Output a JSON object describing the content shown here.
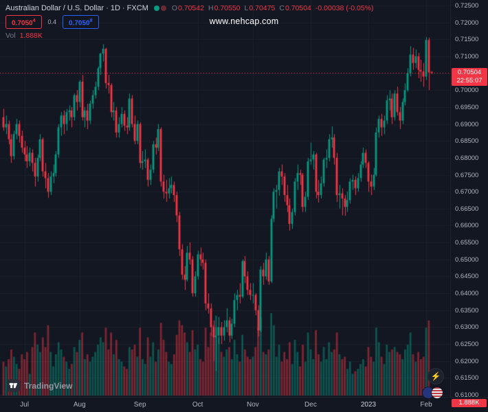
{
  "header": {
    "symbol_title_full": "Australian Dollar / U.S. Dollar · 1D · FXCM",
    "ohlc": {
      "o_label": "O",
      "o": "0.70542",
      "h_label": "H",
      "h": "0.70550",
      "l_label": "L",
      "l": "0.70475",
      "c_label": "C",
      "c": "0.70504",
      "change": "-0.00038 (-0.05%)"
    },
    "sell": {
      "main": "0.7050",
      "sup": "4"
    },
    "spread": "0.4",
    "buy": {
      "main": "0.7050",
      "sup": "8"
    },
    "vol_label": "Vol",
    "vol_value": "1.888K"
  },
  "watermark": "www.nehcap.com",
  "price_axis": {
    "labels": [
      "0.72500",
      "0.72000",
      "0.71500",
      "0.71000",
      "0.70500",
      "0.70000",
      "0.69500",
      "0.69000",
      "0.68500",
      "0.68000",
      "0.67500",
      "0.67000",
      "0.66500",
      "0.66000",
      "0.65500",
      "0.65000",
      "0.64500",
      "0.64000",
      "0.63500",
      "0.63000",
      "0.62500",
      "0.62000",
      "0.61500",
      "0.61000"
    ],
    "last_price_label": "0.70504",
    "countdown": "22:55:07",
    "volume_label": "1.888K"
  },
  "time_axis": {
    "ticks": [
      {
        "label": "Jul",
        "index": 8
      },
      {
        "label": "Aug",
        "index": 29
      },
      {
        "label": "Sep",
        "index": 52
      },
      {
        "label": "Oct",
        "index": 74
      },
      {
        "label": "Nov",
        "index": 95
      },
      {
        "label": "Dec",
        "index": 117
      },
      {
        "label": "2023",
        "index": 139
      },
      {
        "label": "Feb",
        "index": 161
      }
    ]
  },
  "logo": {
    "text": "TradingView"
  },
  "colors": {
    "up": "#089981",
    "down": "#f23645",
    "buy": "#2962ff",
    "axis_text": "#b2b5be",
    "bg": "#131722"
  },
  "chart_data": {
    "type": "candlestick",
    "pair_title": "Australian Dollar / U.S. Dollar",
    "interval": "1D",
    "exchange": "FXCM",
    "last_price": 0.70504,
    "price_range": [
      0.61,
      0.725
    ],
    "price_step": 0.005,
    "volume_units": "thousands",
    "candle_fields": [
      "open",
      "high",
      "low",
      "close",
      "volume_k"
    ],
    "candles": [
      [
        0.692,
        0.6945,
        0.688,
        0.689,
        140
      ],
      [
        0.689,
        0.6925,
        0.687,
        0.69,
        120
      ],
      [
        0.69,
        0.691,
        0.684,
        0.6855,
        150
      ],
      [
        0.6855,
        0.687,
        0.6785,
        0.6805,
        190
      ],
      [
        0.6805,
        0.688,
        0.6795,
        0.687,
        160
      ],
      [
        0.687,
        0.6915,
        0.6855,
        0.69,
        130
      ],
      [
        0.69,
        0.691,
        0.6845,
        0.6865,
        110
      ],
      [
        0.6865,
        0.688,
        0.6815,
        0.683,
        170
      ],
      [
        0.683,
        0.685,
        0.679,
        0.681,
        150
      ],
      [
        0.681,
        0.6835,
        0.677,
        0.679,
        180
      ],
      [
        0.679,
        0.683,
        0.6775,
        0.6815,
        90
      ],
      [
        0.6815,
        0.6825,
        0.676,
        0.6785,
        200
      ],
      [
        0.6785,
        0.68,
        0.6715,
        0.6745,
        260
      ],
      [
        0.6745,
        0.681,
        0.673,
        0.68,
        210
      ],
      [
        0.68,
        0.687,
        0.679,
        0.6855,
        180
      ],
      [
        0.6855,
        0.686,
        0.6745,
        0.676,
        240
      ],
      [
        0.676,
        0.6785,
        0.671,
        0.674,
        200
      ],
      [
        0.674,
        0.6755,
        0.6682,
        0.67,
        290
      ],
      [
        0.67,
        0.676,
        0.669,
        0.6745,
        180
      ],
      [
        0.6745,
        0.678,
        0.6725,
        0.6755,
        120
      ],
      [
        0.6755,
        0.682,
        0.6745,
        0.681,
        170
      ],
      [
        0.681,
        0.69,
        0.68,
        0.689,
        220
      ],
      [
        0.689,
        0.6935,
        0.6865,
        0.6925,
        190
      ],
      [
        0.6925,
        0.694,
        0.687,
        0.69,
        160
      ],
      [
        0.69,
        0.6945,
        0.688,
        0.6935,
        140
      ],
      [
        0.6935,
        0.6955,
        0.691,
        0.694,
        110
      ],
      [
        0.694,
        0.695,
        0.689,
        0.692,
        130
      ],
      [
        0.692,
        0.699,
        0.691,
        0.6985,
        200
      ],
      [
        0.6985,
        0.7,
        0.694,
        0.6965,
        180
      ],
      [
        0.6965,
        0.703,
        0.695,
        0.7025,
        230
      ],
      [
        0.7025,
        0.7045,
        0.691,
        0.692,
        260
      ],
      [
        0.692,
        0.695,
        0.689,
        0.694,
        150
      ],
      [
        0.694,
        0.696,
        0.6885,
        0.691,
        170
      ],
      [
        0.691,
        0.697,
        0.69,
        0.696,
        140
      ],
      [
        0.696,
        0.7,
        0.6945,
        0.6985,
        160
      ],
      [
        0.6985,
        0.7025,
        0.6975,
        0.701,
        180
      ],
      [
        0.701,
        0.707,
        0.7,
        0.7065,
        210
      ],
      [
        0.7065,
        0.711,
        0.7045,
        0.7108,
        240
      ],
      [
        0.7108,
        0.7136,
        0.7085,
        0.7122,
        220
      ],
      [
        0.7122,
        0.7125,
        0.7005,
        0.7021,
        280
      ],
      [
        0.7021,
        0.7045,
        0.699,
        0.7015,
        190
      ],
      [
        0.7015,
        0.702,
        0.692,
        0.6935,
        260
      ],
      [
        0.6935,
        0.6965,
        0.691,
        0.694,
        170
      ],
      [
        0.694,
        0.695,
        0.686,
        0.6875,
        230
      ],
      [
        0.6875,
        0.692,
        0.686,
        0.69,
        150
      ],
      [
        0.69,
        0.695,
        0.689,
        0.693,
        140
      ],
      [
        0.693,
        0.694,
        0.688,
        0.6895,
        120
      ],
      [
        0.6895,
        0.692,
        0.687,
        0.689,
        110
      ],
      [
        0.689,
        0.699,
        0.688,
        0.6975,
        200
      ],
      [
        0.6975,
        0.6985,
        0.689,
        0.69,
        190
      ],
      [
        0.69,
        0.6925,
        0.684,
        0.685,
        210
      ],
      [
        0.685,
        0.691,
        0.684,
        0.69,
        160
      ],
      [
        0.69,
        0.6905,
        0.677,
        0.6785,
        280
      ],
      [
        0.6785,
        0.682,
        0.6765,
        0.679,
        150
      ],
      [
        0.679,
        0.6825,
        0.677,
        0.6795,
        130
      ],
      [
        0.6795,
        0.68,
        0.6715,
        0.6735,
        240
      ],
      [
        0.6735,
        0.678,
        0.672,
        0.6765,
        160
      ],
      [
        0.6765,
        0.685,
        0.6755,
        0.684,
        220
      ],
      [
        0.684,
        0.686,
        0.681,
        0.683,
        140
      ],
      [
        0.683,
        0.69,
        0.682,
        0.6885,
        190
      ],
      [
        0.6885,
        0.689,
        0.6715,
        0.673,
        300
      ],
      [
        0.673,
        0.675,
        0.668,
        0.67,
        230
      ],
      [
        0.67,
        0.6735,
        0.667,
        0.6695,
        180
      ],
      [
        0.6695,
        0.674,
        0.668,
        0.671,
        140
      ],
      [
        0.671,
        0.6745,
        0.6695,
        0.672,
        130
      ],
      [
        0.672,
        0.673,
        0.667,
        0.669,
        170
      ],
      [
        0.669,
        0.67,
        0.661,
        0.663,
        250
      ],
      [
        0.663,
        0.664,
        0.651,
        0.653,
        310
      ],
      [
        0.653,
        0.6545,
        0.644,
        0.6455,
        290
      ],
      [
        0.6455,
        0.648,
        0.641,
        0.644,
        260
      ],
      [
        0.644,
        0.654,
        0.6435,
        0.652,
        220
      ],
      [
        0.652,
        0.655,
        0.6485,
        0.65,
        180
      ],
      [
        0.65,
        0.651,
        0.639,
        0.64,
        270
      ],
      [
        0.64,
        0.6465,
        0.639,
        0.645,
        190
      ],
      [
        0.645,
        0.6525,
        0.644,
        0.6515,
        210
      ],
      [
        0.6515,
        0.6535,
        0.648,
        0.65,
        150
      ],
      [
        0.65,
        0.652,
        0.647,
        0.649,
        140
      ],
      [
        0.649,
        0.65,
        0.635,
        0.637,
        280
      ],
      [
        0.637,
        0.64,
        0.634,
        0.6355,
        200
      ],
      [
        0.6355,
        0.637,
        0.6275,
        0.63,
        260
      ],
      [
        0.63,
        0.632,
        0.62,
        0.627,
        290
      ],
      [
        0.627,
        0.63,
        0.617,
        0.6275,
        330
      ],
      [
        0.6275,
        0.633,
        0.625,
        0.63,
        240
      ],
      [
        0.63,
        0.6315,
        0.625,
        0.6275,
        180
      ],
      [
        0.6275,
        0.632,
        0.626,
        0.63,
        160
      ],
      [
        0.63,
        0.6356,
        0.6285,
        0.632,
        190
      ],
      [
        0.632,
        0.633,
        0.6255,
        0.6275,
        200
      ],
      [
        0.6275,
        0.6325,
        0.6265,
        0.631,
        150
      ],
      [
        0.631,
        0.64,
        0.63,
        0.638,
        230
      ],
      [
        0.638,
        0.641,
        0.635,
        0.6395,
        170
      ],
      [
        0.6395,
        0.643,
        0.637,
        0.639,
        140
      ],
      [
        0.639,
        0.65,
        0.6385,
        0.6495,
        250
      ],
      [
        0.6495,
        0.651,
        0.643,
        0.645,
        190
      ],
      [
        0.645,
        0.6465,
        0.6395,
        0.641,
        160
      ],
      [
        0.641,
        0.643,
        0.638,
        0.6395,
        150
      ],
      [
        0.6395,
        0.643,
        0.637,
        0.6395,
        160
      ],
      [
        0.6395,
        0.64,
        0.6335,
        0.635,
        200
      ],
      [
        0.635,
        0.6365,
        0.6272,
        0.629,
        280
      ],
      [
        0.629,
        0.648,
        0.6285,
        0.647,
        320
      ],
      [
        0.647,
        0.649,
        0.6425,
        0.645,
        180
      ],
      [
        0.645,
        0.652,
        0.644,
        0.65,
        170
      ],
      [
        0.65,
        0.651,
        0.6425,
        0.6435,
        190
      ],
      [
        0.6435,
        0.663,
        0.643,
        0.662,
        340
      ],
      [
        0.662,
        0.671,
        0.661,
        0.67,
        290
      ],
      [
        0.67,
        0.672,
        0.665,
        0.6705,
        160
      ],
      [
        0.6705,
        0.677,
        0.6688,
        0.676,
        210
      ],
      [
        0.676,
        0.678,
        0.672,
        0.6745,
        140
      ],
      [
        0.6745,
        0.6755,
        0.667,
        0.669,
        180
      ],
      [
        0.669,
        0.672,
        0.664,
        0.666,
        150
      ],
      [
        0.666,
        0.668,
        0.6585,
        0.6605,
        220
      ],
      [
        0.6605,
        0.665,
        0.659,
        0.664,
        130
      ],
      [
        0.664,
        0.674,
        0.663,
        0.673,
        230
      ],
      [
        0.673,
        0.678,
        0.6705,
        0.6755,
        180
      ],
      [
        0.6755,
        0.6765,
        0.672,
        0.675,
        120
      ],
      [
        0.675,
        0.6755,
        0.664,
        0.6655,
        210
      ],
      [
        0.6655,
        0.67,
        0.664,
        0.6685,
        140
      ],
      [
        0.6685,
        0.68,
        0.6676,
        0.679,
        260
      ],
      [
        0.679,
        0.6845,
        0.678,
        0.6795,
        190
      ],
      [
        0.6795,
        0.682,
        0.6765,
        0.681,
        150
      ],
      [
        0.681,
        0.6815,
        0.668,
        0.67,
        270
      ],
      [
        0.67,
        0.6735,
        0.6668,
        0.669,
        170
      ],
      [
        0.669,
        0.6745,
        0.668,
        0.6725,
        140
      ],
      [
        0.6725,
        0.68,
        0.6715,
        0.6795,
        200
      ],
      [
        0.6795,
        0.6825,
        0.677,
        0.68,
        150
      ],
      [
        0.68,
        0.687,
        0.679,
        0.6855,
        220
      ],
      [
        0.6855,
        0.6893,
        0.683,
        0.686,
        180
      ],
      [
        0.686,
        0.687,
        0.678,
        0.68,
        190
      ],
      [
        0.68,
        0.6815,
        0.667,
        0.669,
        260
      ],
      [
        0.669,
        0.672,
        0.665,
        0.6695,
        170
      ],
      [
        0.6695,
        0.671,
        0.663,
        0.668,
        150
      ],
      [
        0.668,
        0.669,
        0.6629,
        0.6655,
        160
      ],
      [
        0.6655,
        0.67,
        0.664,
        0.6675,
        110
      ],
      [
        0.6675,
        0.674,
        0.6665,
        0.673,
        140
      ],
      [
        0.673,
        0.675,
        0.6705,
        0.6735,
        90
      ],
      [
        0.6735,
        0.6745,
        0.669,
        0.671,
        100
      ],
      [
        0.671,
        0.6755,
        0.67,
        0.674,
        110
      ],
      [
        0.674,
        0.679,
        0.673,
        0.678,
        130
      ],
      [
        0.678,
        0.683,
        0.677,
        0.6815,
        150
      ],
      [
        0.6815,
        0.6825,
        0.677,
        0.6785,
        120
      ],
      [
        0.6785,
        0.679,
        0.67,
        0.673,
        200
      ],
      [
        0.673,
        0.675,
        0.669,
        0.6715,
        160
      ],
      [
        0.6715,
        0.677,
        0.6705,
        0.675,
        140
      ],
      [
        0.675,
        0.689,
        0.6745,
        0.6875,
        280
      ],
      [
        0.6875,
        0.6925,
        0.686,
        0.6915,
        220
      ],
      [
        0.6915,
        0.693,
        0.6865,
        0.689,
        160
      ],
      [
        0.689,
        0.6925,
        0.687,
        0.691,
        130
      ],
      [
        0.691,
        0.6985,
        0.69,
        0.697,
        210
      ],
      [
        0.697,
        0.7,
        0.694,
        0.6975,
        180
      ],
      [
        0.6975,
        0.699,
        0.69,
        0.692,
        190
      ],
      [
        0.692,
        0.7,
        0.691,
        0.699,
        200
      ],
      [
        0.699,
        0.701,
        0.6925,
        0.6935,
        180
      ],
      [
        0.6935,
        0.695,
        0.6885,
        0.691,
        170
      ],
      [
        0.691,
        0.6975,
        0.69,
        0.6965,
        150
      ],
      [
        0.6965,
        0.702,
        0.6955,
        0.7,
        190
      ],
      [
        0.7,
        0.7065,
        0.6995,
        0.705,
        210
      ],
      [
        0.705,
        0.713,
        0.704,
        0.7105,
        260
      ],
      [
        0.7105,
        0.7125,
        0.706,
        0.708,
        170
      ],
      [
        0.708,
        0.712,
        0.7065,
        0.71,
        140
      ],
      [
        0.71,
        0.711,
        0.7035,
        0.706,
        180
      ],
      [
        0.706,
        0.709,
        0.7025,
        0.7055,
        150
      ],
      [
        0.7055,
        0.708,
        0.701,
        0.704,
        160
      ],
      [
        0.704,
        0.7157,
        0.703,
        0.7148,
        280
      ],
      [
        0.7148,
        0.7155,
        0.7,
        0.7052,
        310
      ],
      [
        0.70542,
        0.7055,
        0.70475,
        0.70504,
        1.888
      ]
    ]
  }
}
